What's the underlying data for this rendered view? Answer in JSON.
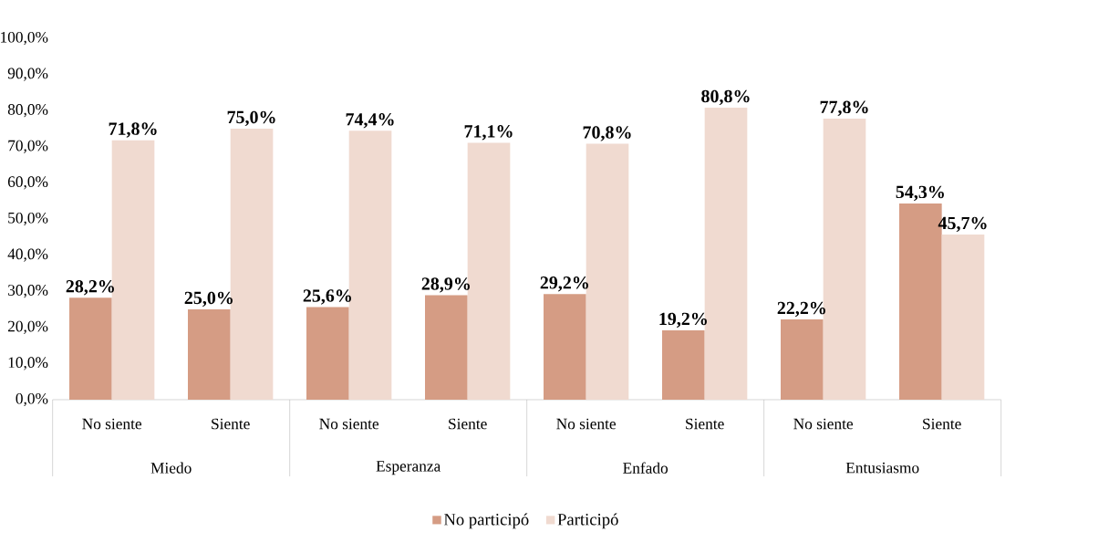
{
  "chart_data": {
    "type": "bar",
    "categories": [
      "No siente",
      "Siente",
      "No siente",
      "Siente",
      "No siente",
      "Siente",
      "No siente",
      "Siente"
    ],
    "annotations": [
      "Miedo",
      "Esperanza",
      "Enfado",
      "Entusiasmo"
    ],
    "series": [
      {
        "name": "No participó",
        "color": "#d59c84",
        "values": [
          28.2,
          25.0,
          25.6,
          28.9,
          29.2,
          19.2,
          22.2,
          54.3
        ],
        "value_labels": [
          "28,2%",
          "25,0%",
          "25,6%",
          "28,9%",
          "29,2%",
          "19,2%",
          "22,2%",
          "54,3%"
        ]
      },
      {
        "name": "Participó",
        "color": "#f0dad0",
        "values": [
          71.8,
          75.0,
          74.4,
          71.1,
          70.8,
          80.8,
          77.8,
          45.7
        ],
        "value_labels": [
          "71,8%",
          "75,0%",
          "74,4%",
          "71,1%",
          "70,8%",
          "80,8%",
          "77,8%",
          "45,7%"
        ]
      }
    ],
    "ylim": [
      0,
      100
    ],
    "yticks": [
      {
        "value": 0,
        "label": "0,0%"
      },
      {
        "value": 10,
        "label": "10,0%"
      },
      {
        "value": 20,
        "label": "20,0%"
      },
      {
        "value": 30,
        "label": "30,0%"
      },
      {
        "value": 40,
        "label": "40,0%"
      },
      {
        "value": 50,
        "label": "50,0%"
      },
      {
        "value": 60,
        "label": "60,0%"
      },
      {
        "value": 70,
        "label": "70,0%"
      },
      {
        "value": 80,
        "label": "80,0%"
      },
      {
        "value": 90,
        "label": "90,0%"
      },
      {
        "value": 100,
        "label": "100,0%"
      }
    ],
    "grid": false,
    "legend": "bottom"
  }
}
